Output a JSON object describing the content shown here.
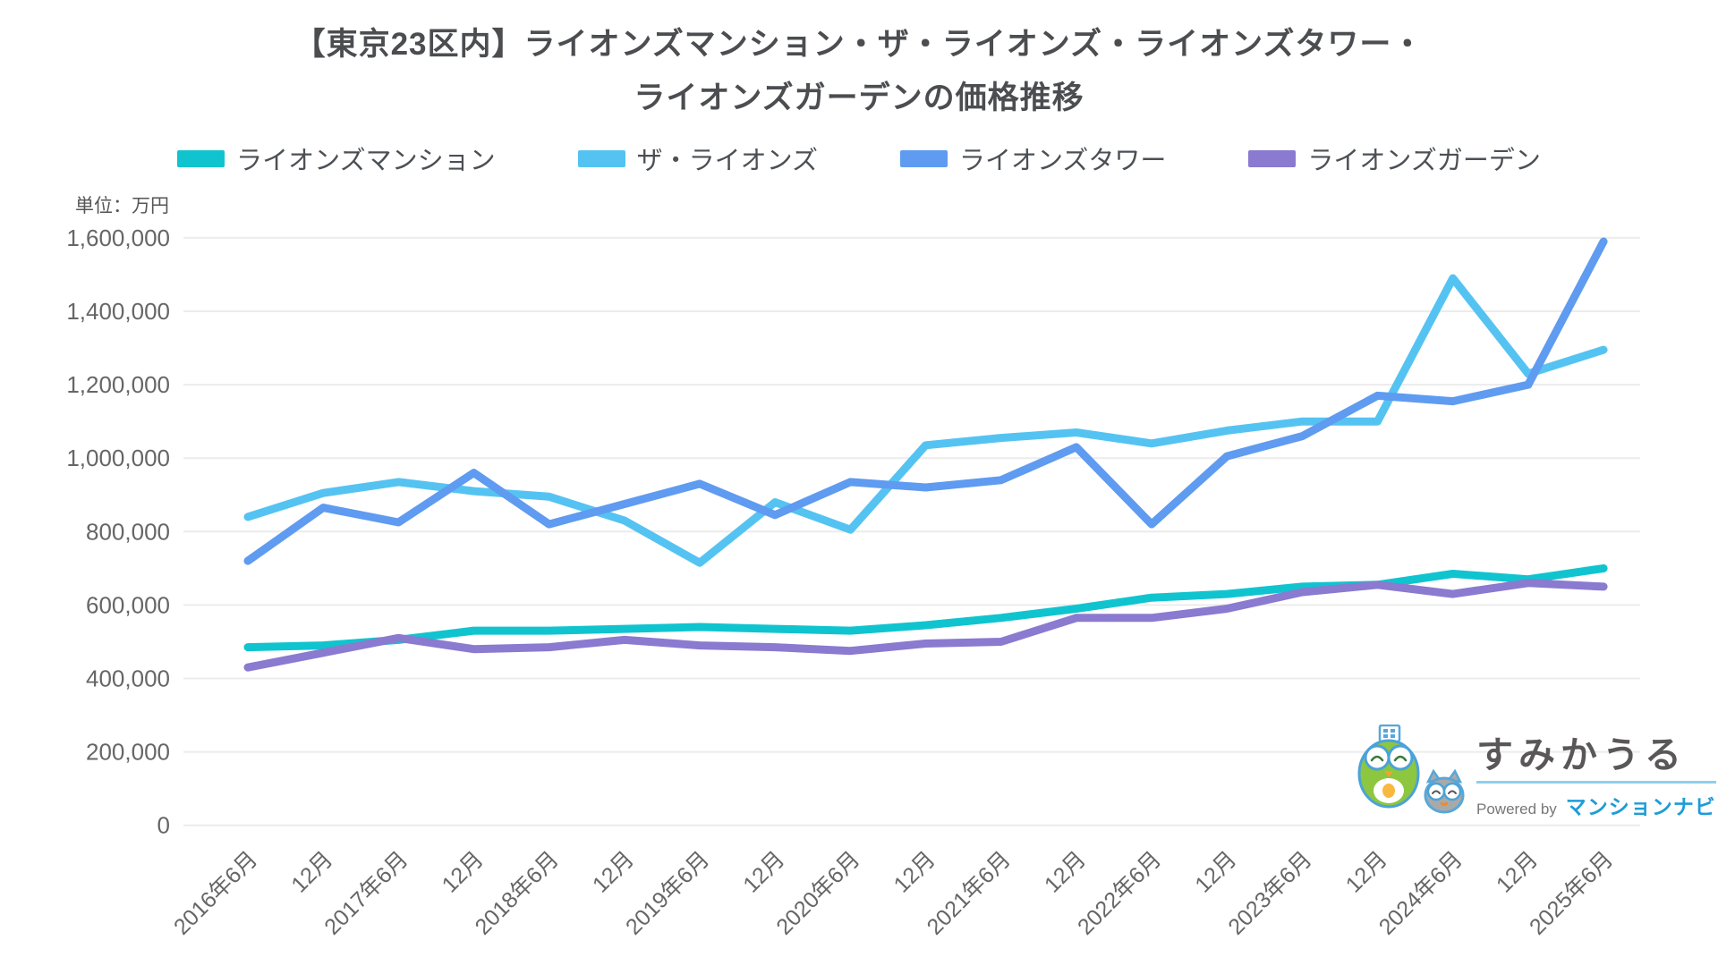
{
  "title": {
    "line1": "【東京23区内】ライオンズマンション・ザ・ライオンズ・ライオンズタワー・",
    "line2": "ライオンズガーデンの価格推移"
  },
  "unit_label": "単位：万円",
  "legend": [
    {
      "label": "ライオンズマンション",
      "color": "#10C4CF"
    },
    {
      "label": "ザ・ライオンズ",
      "color": "#55C3F2"
    },
    {
      "label": "ライオンズタワー",
      "color": "#5F9BF0"
    },
    {
      "label": "ライオンズガーデン",
      "color": "#8A7AD0"
    }
  ],
  "watermark": {
    "brand": "すみかうる",
    "powered_by": "Powered by",
    "powered_by_brand": "マンションナビ"
  },
  "chart_data": {
    "type": "line",
    "title": "【東京23区内】ライオンズマンション・ザ・ライオンズ・ライオンズタワー・ライオンズガーデンの価格推移",
    "ylabel": "単位：万円",
    "ylim": [
      0,
      1600000
    ],
    "ytick_step": 200000,
    "grid": true,
    "legend_position": "top",
    "categories": [
      "2016年6月",
      "12月",
      "2017年6月",
      "12月",
      "2018年6月",
      "12月",
      "2019年6月",
      "12月",
      "2020年6月",
      "12月",
      "2021年6月",
      "12月",
      "2022年6月",
      "12月",
      "2023年6月",
      "12月",
      "2024年6月",
      "12月",
      "2025年6月"
    ],
    "series": [
      {
        "key": "lions-mansion",
        "name": "ライオンズマンション",
        "color": "#10C4CF",
        "values": [
          485000,
          490000,
          505000,
          530000,
          530000,
          535000,
          540000,
          535000,
          530000,
          545000,
          565000,
          590000,
          620000,
          630000,
          650000,
          655000,
          685000,
          670000,
          700000
        ]
      },
      {
        "key": "the-lions",
        "name": "ザ・ライオンズ",
        "color": "#55C3F2",
        "values": [
          840000,
          905000,
          935000,
          910000,
          895000,
          830000,
          715000,
          880000,
          805000,
          1035000,
          1055000,
          1070000,
          1040000,
          1075000,
          1100000,
          1100000,
          1490000,
          1230000,
          1295000
        ]
      },
      {
        "key": "lions-tower",
        "name": "ライオンズタワー",
        "color": "#5F9BF0",
        "values": [
          720000,
          865000,
          825000,
          960000,
          820000,
          875000,
          930000,
          845000,
          935000,
          920000,
          940000,
          1030000,
          820000,
          1005000,
          1060000,
          1170000,
          1155000,
          1200000,
          1590000
        ]
      },
      {
        "key": "lions-garden",
        "name": "ライオンズガーデン",
        "color": "#8A7AD0",
        "values": [
          430000,
          470000,
          510000,
          480000,
          485000,
          505000,
          490000,
          485000,
          475000,
          495000,
          500000,
          565000,
          565000,
          590000,
          635000,
          655000,
          630000,
          660000,
          650000
        ]
      }
    ]
  }
}
